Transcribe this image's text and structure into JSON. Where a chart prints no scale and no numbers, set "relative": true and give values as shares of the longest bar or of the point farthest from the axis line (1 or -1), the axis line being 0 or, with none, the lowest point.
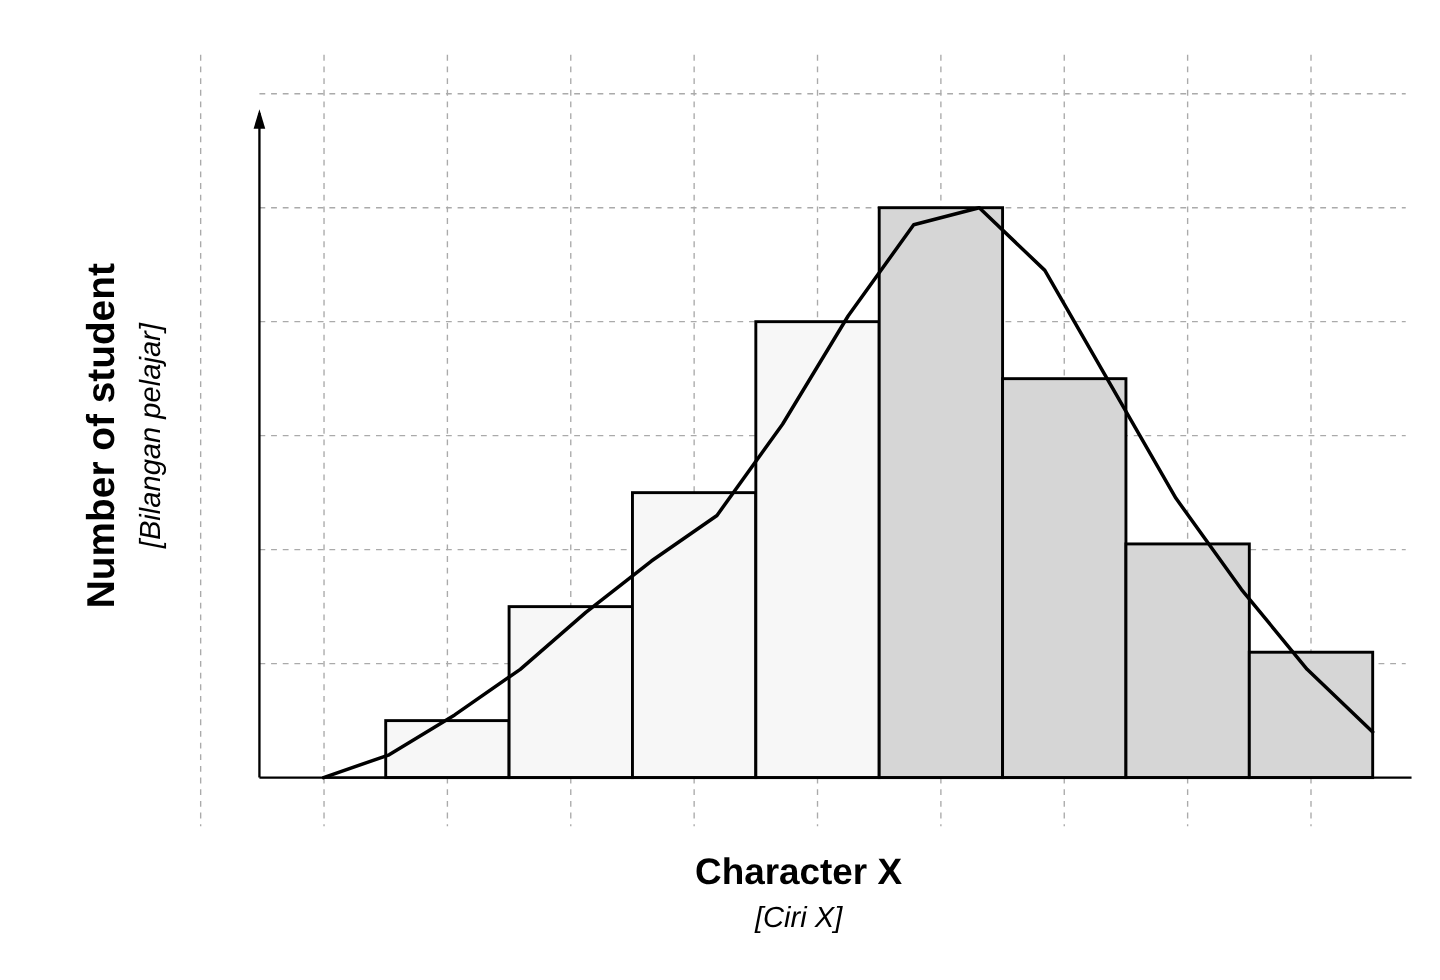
{
  "chart_data": [
    {
      "type": "bar",
      "xlabel": "Character X",
      "ylabel": "Number of student",
      "annotations": [
        "[Ciri X]",
        "[Bilangan pelajar]"
      ],
      "relative": true,
      "grid": true,
      "categories": [
        null,
        null,
        null,
        null,
        null,
        null,
        null,
        null
      ],
      "colors": [
        "#f7f7f7",
        "#f7f7f7",
        "#f7f7f7",
        "#f7f7f7",
        "#d6d6d6",
        "#d6d6d6",
        "#d6d6d6",
        "#d6d6d6"
      ],
      "values": [
        0.1,
        0.3,
        0.5,
        0.8,
        1,
        0.7,
        0.41,
        0.22
      ]
    },
    {
      "type": "line",
      "relative": true,
      "categories": [
        null,
        null,
        null,
        null,
        null,
        null,
        null,
        null,
        null,
        null,
        null,
        null,
        null,
        null,
        null,
        null,
        null
      ],
      "series": [
        {
          "color": "#000000",
          "values": [
            0,
            0.04,
            0.11,
            0.19,
            0.29,
            0.38,
            0.46,
            0.62,
            0.81,
            0.97,
            1,
            0.89,
            0.69,
            0.49,
            0.33,
            0.19,
            0.08
          ]
        }
      ]
    }
  ]
}
